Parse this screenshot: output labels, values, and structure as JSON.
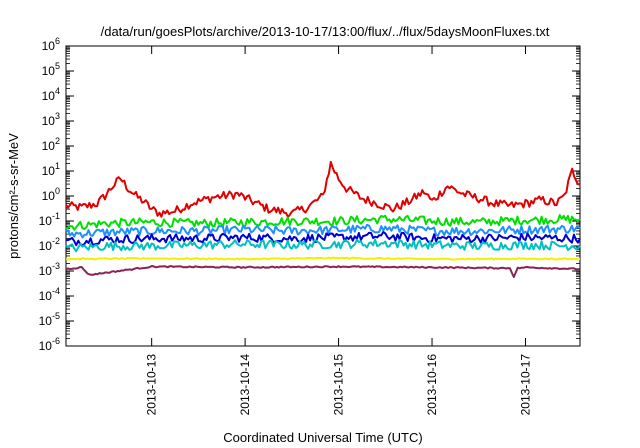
{
  "chart_data": {
    "type": "line",
    "title": "/data/run/goesPlots/archive/2013-10-17/13:00/flux/../flux/5daysMoonFluxes.txt",
    "xlabel": "Coordinated Universal Time (UTC)",
    "ylabel": "protons/cm²-s-sr-MeV",
    "y_scale": "log",
    "ylim": [
      1e-06,
      1000000.0
    ],
    "y_ticks": [
      1e-06,
      1e-05,
      0.0001,
      0.001,
      0.01,
      0.1,
      1.0,
      10.0,
      100.0,
      1000.0,
      10000.0,
      100000.0,
      1000000.0
    ],
    "xlim": [
      "2013-10-12T02:00",
      "2013-10-17T14:00"
    ],
    "x_ticks": [
      "2013-10-13",
      "2013-10-14",
      "2013-10-15",
      "2013-10-16",
      "2013-10-17"
    ],
    "grid": false,
    "legend": "none",
    "series": [
      {
        "color": "#e00000",
        "style": "jagged",
        "x": [
          "2013-10-12T02:00",
          "2013-10-12T06:00",
          "2013-10-12T10:00",
          "2013-10-12T12:00",
          "2013-10-12T14:00",
          "2013-10-12T16:00",
          "2013-10-12T18:00",
          "2013-10-12T20:00",
          "2013-10-12T22:00",
          "2013-10-13T00:00",
          "2013-10-13T02:00",
          "2013-10-13T06:00",
          "2013-10-13T10:00",
          "2013-10-13T16:00",
          "2013-10-13T22:00",
          "2013-10-14T02:00",
          "2013-10-14T06:00",
          "2013-10-14T12:00",
          "2013-10-14T16:00",
          "2013-10-14T20:00",
          "2013-10-14T22:00",
          "2013-10-15T00:00",
          "2013-10-15T02:00",
          "2013-10-15T06:00",
          "2013-10-15T10:00",
          "2013-10-15T14:00",
          "2013-10-15T18:00",
          "2013-10-15T22:00",
          "2013-10-16T00:00",
          "2013-10-16T04:00",
          "2013-10-16T08:00",
          "2013-10-16T12:00",
          "2013-10-16T16:00",
          "2013-10-16T20:00",
          "2013-10-17T00:00",
          "2013-10-17T04:00",
          "2013-10-17T08:00",
          "2013-10-17T10:00",
          "2013-10-17T12:00",
          "2013-10-17T14:00"
        ],
        "values": [
          0.4,
          0.35,
          0.5,
          1.0,
          2.5,
          5.0,
          2.0,
          1.0,
          0.6,
          0.3,
          0.2,
          0.25,
          0.5,
          0.9,
          1.2,
          0.6,
          0.3,
          0.2,
          0.35,
          1.0,
          20,
          5,
          2,
          0.8,
          0.5,
          0.3,
          0.6,
          1.5,
          0.6,
          2.5,
          1.2,
          0.8,
          0.5,
          0.4,
          0.5,
          0.7,
          0.5,
          1.0,
          10,
          3
        ]
      },
      {
        "color": "#00e000",
        "style": "jagged",
        "x": [
          "2013-10-12T02:00",
          "2013-10-12T12:00",
          "2013-10-13T00:00",
          "2013-10-13T12:00",
          "2013-10-14T00:00",
          "2013-10-14T12:00",
          "2013-10-15T00:00",
          "2013-10-15T12:00",
          "2013-10-16T00:00",
          "2013-10-16T12:00",
          "2013-10-17T00:00",
          "2013-10-17T14:00"
        ],
        "values": [
          0.06,
          0.08,
          0.09,
          0.08,
          0.09,
          0.1,
          0.1,
          0.12,
          0.1,
          0.09,
          0.11,
          0.12
        ]
      },
      {
        "color": "#1e90ff",
        "style": "jagged",
        "x": [
          "2013-10-12T02:00",
          "2013-10-12T12:00",
          "2013-10-13T00:00",
          "2013-10-13T12:00",
          "2013-10-14T00:00",
          "2013-10-14T12:00",
          "2013-10-15T00:00",
          "2013-10-15T12:00",
          "2013-10-16T00:00",
          "2013-10-16T12:00",
          "2013-10-17T00:00",
          "2013-10-17T14:00"
        ],
        "values": [
          0.03,
          0.035,
          0.04,
          0.04,
          0.045,
          0.04,
          0.045,
          0.05,
          0.04,
          0.04,
          0.045,
          0.05
        ]
      },
      {
        "color": "#0000d0",
        "style": "jagged",
        "x": [
          "2013-10-12T02:00",
          "2013-10-12T12:00",
          "2013-10-13T00:00",
          "2013-10-13T12:00",
          "2013-10-14T00:00",
          "2013-10-14T12:00",
          "2013-10-15T00:00",
          "2013-10-15T12:00",
          "2013-10-16T00:00",
          "2013-10-16T12:00",
          "2013-10-17T00:00",
          "2013-10-17T14:00"
        ],
        "values": [
          0.015,
          0.018,
          0.02,
          0.02,
          0.022,
          0.02,
          0.022,
          0.025,
          0.02,
          0.02,
          0.022,
          0.02
        ]
      },
      {
        "color": "#00c0c0",
        "style": "jagged",
        "x": [
          "2013-10-12T02:00",
          "2013-10-12T12:00",
          "2013-10-13T00:00",
          "2013-10-13T12:00",
          "2013-10-14T00:00",
          "2013-10-14T12:00",
          "2013-10-15T00:00",
          "2013-10-15T12:00",
          "2013-10-16T00:00",
          "2013-10-16T12:00",
          "2013-10-17T00:00",
          "2013-10-17T14:00"
        ],
        "values": [
          0.008,
          0.01,
          0.01,
          0.011,
          0.012,
          0.011,
          0.012,
          0.013,
          0.011,
          0.01,
          0.011,
          0.01
        ]
      },
      {
        "color": "#f0f000",
        "style": "smooth",
        "x": [
          "2013-10-12T02:00",
          "2013-10-13T00:00",
          "2013-10-14T00:00",
          "2013-10-15T00:00",
          "2013-10-16T00:00",
          "2013-10-17T00:00",
          "2013-10-17T14:00"
        ],
        "values": [
          0.003,
          0.0032,
          0.003,
          0.0033,
          0.003,
          0.0031,
          0.003
        ]
      },
      {
        "color": "#8b2252",
        "style": "smooth",
        "x": [
          "2013-10-12T02:00",
          "2013-10-12T06:00",
          "2013-10-12T08:00",
          "2013-10-13T00:00",
          "2013-10-14T00:00",
          "2013-10-15T00:00",
          "2013-10-16T00:00",
          "2013-10-16T20:00",
          "2013-10-16T21:00",
          "2013-10-16T22:00",
          "2013-10-17T00:00",
          "2013-10-17T14:00"
        ],
        "values": [
          0.0012,
          0.0014,
          0.0007,
          0.0015,
          0.0014,
          0.0015,
          0.0014,
          0.0013,
          0.0006,
          0.0013,
          0.0014,
          0.0012
        ]
      }
    ]
  }
}
